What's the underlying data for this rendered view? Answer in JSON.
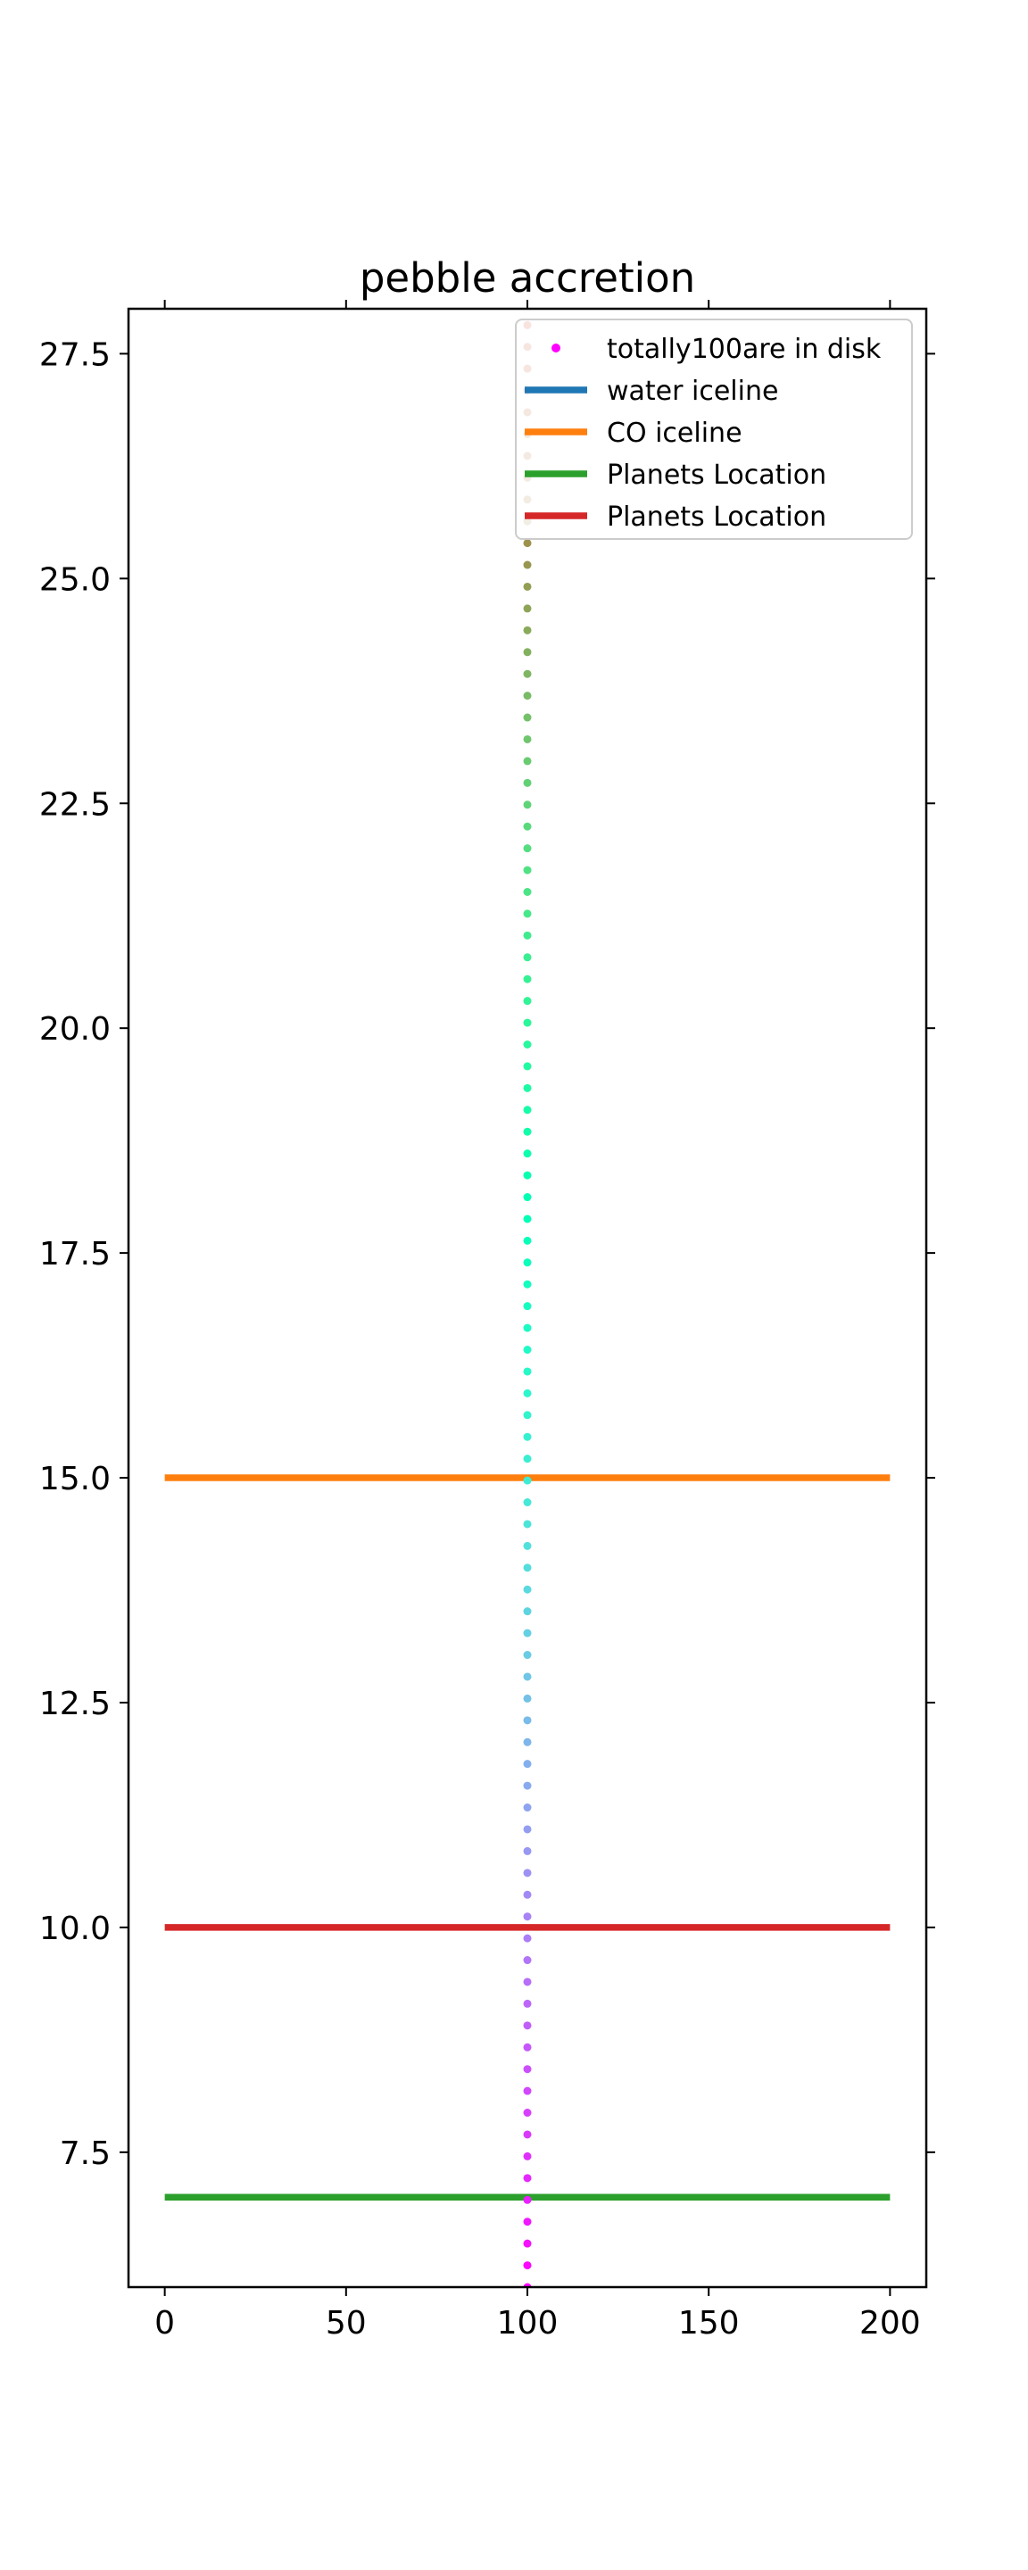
{
  "chart_data": {
    "type": "scatter",
    "title": "pebble accretion",
    "xlabel": "",
    "ylabel": "",
    "xlim": [
      -10,
      210
    ],
    "ylim": [
      6.0,
      28.0
    ],
    "xticks": [
      0,
      50,
      100,
      150,
      200
    ],
    "yticks": [
      7.5,
      10.0,
      12.5,
      15.0,
      17.5,
      20.0,
      22.5,
      25.0,
      27.5
    ],
    "ytick_labels": [
      "7.5",
      "10.0",
      "12.5",
      "15.0",
      "17.5",
      "20.0",
      "22.5",
      "25.0",
      "27.5"
    ],
    "xtick_labels": [
      "0",
      "50",
      "100",
      "150",
      "200"
    ],
    "grid": false,
    "legend_position": "top-right",
    "scatter": {
      "name": "totally100are in disk",
      "x": 100,
      "count": 100,
      "y_start": 6.0,
      "y_end": 30.0,
      "colormap": "rainbow"
    },
    "lines": [
      {
        "name": "water iceline",
        "y": null,
        "x": [
          0,
          200
        ],
        "color": "#1f77b4"
      },
      {
        "name": "CO iceline",
        "y": 15.0,
        "x": [
          0,
          200
        ],
        "color": "#ff7f0e"
      },
      {
        "name": "Planets Location",
        "y": 7.0,
        "x": [
          0,
          200
        ],
        "color": "#2ca02c"
      },
      {
        "name": "Planets Location",
        "y": 10.0,
        "x": [
          0,
          200
        ],
        "color": "#d62728"
      }
    ]
  }
}
